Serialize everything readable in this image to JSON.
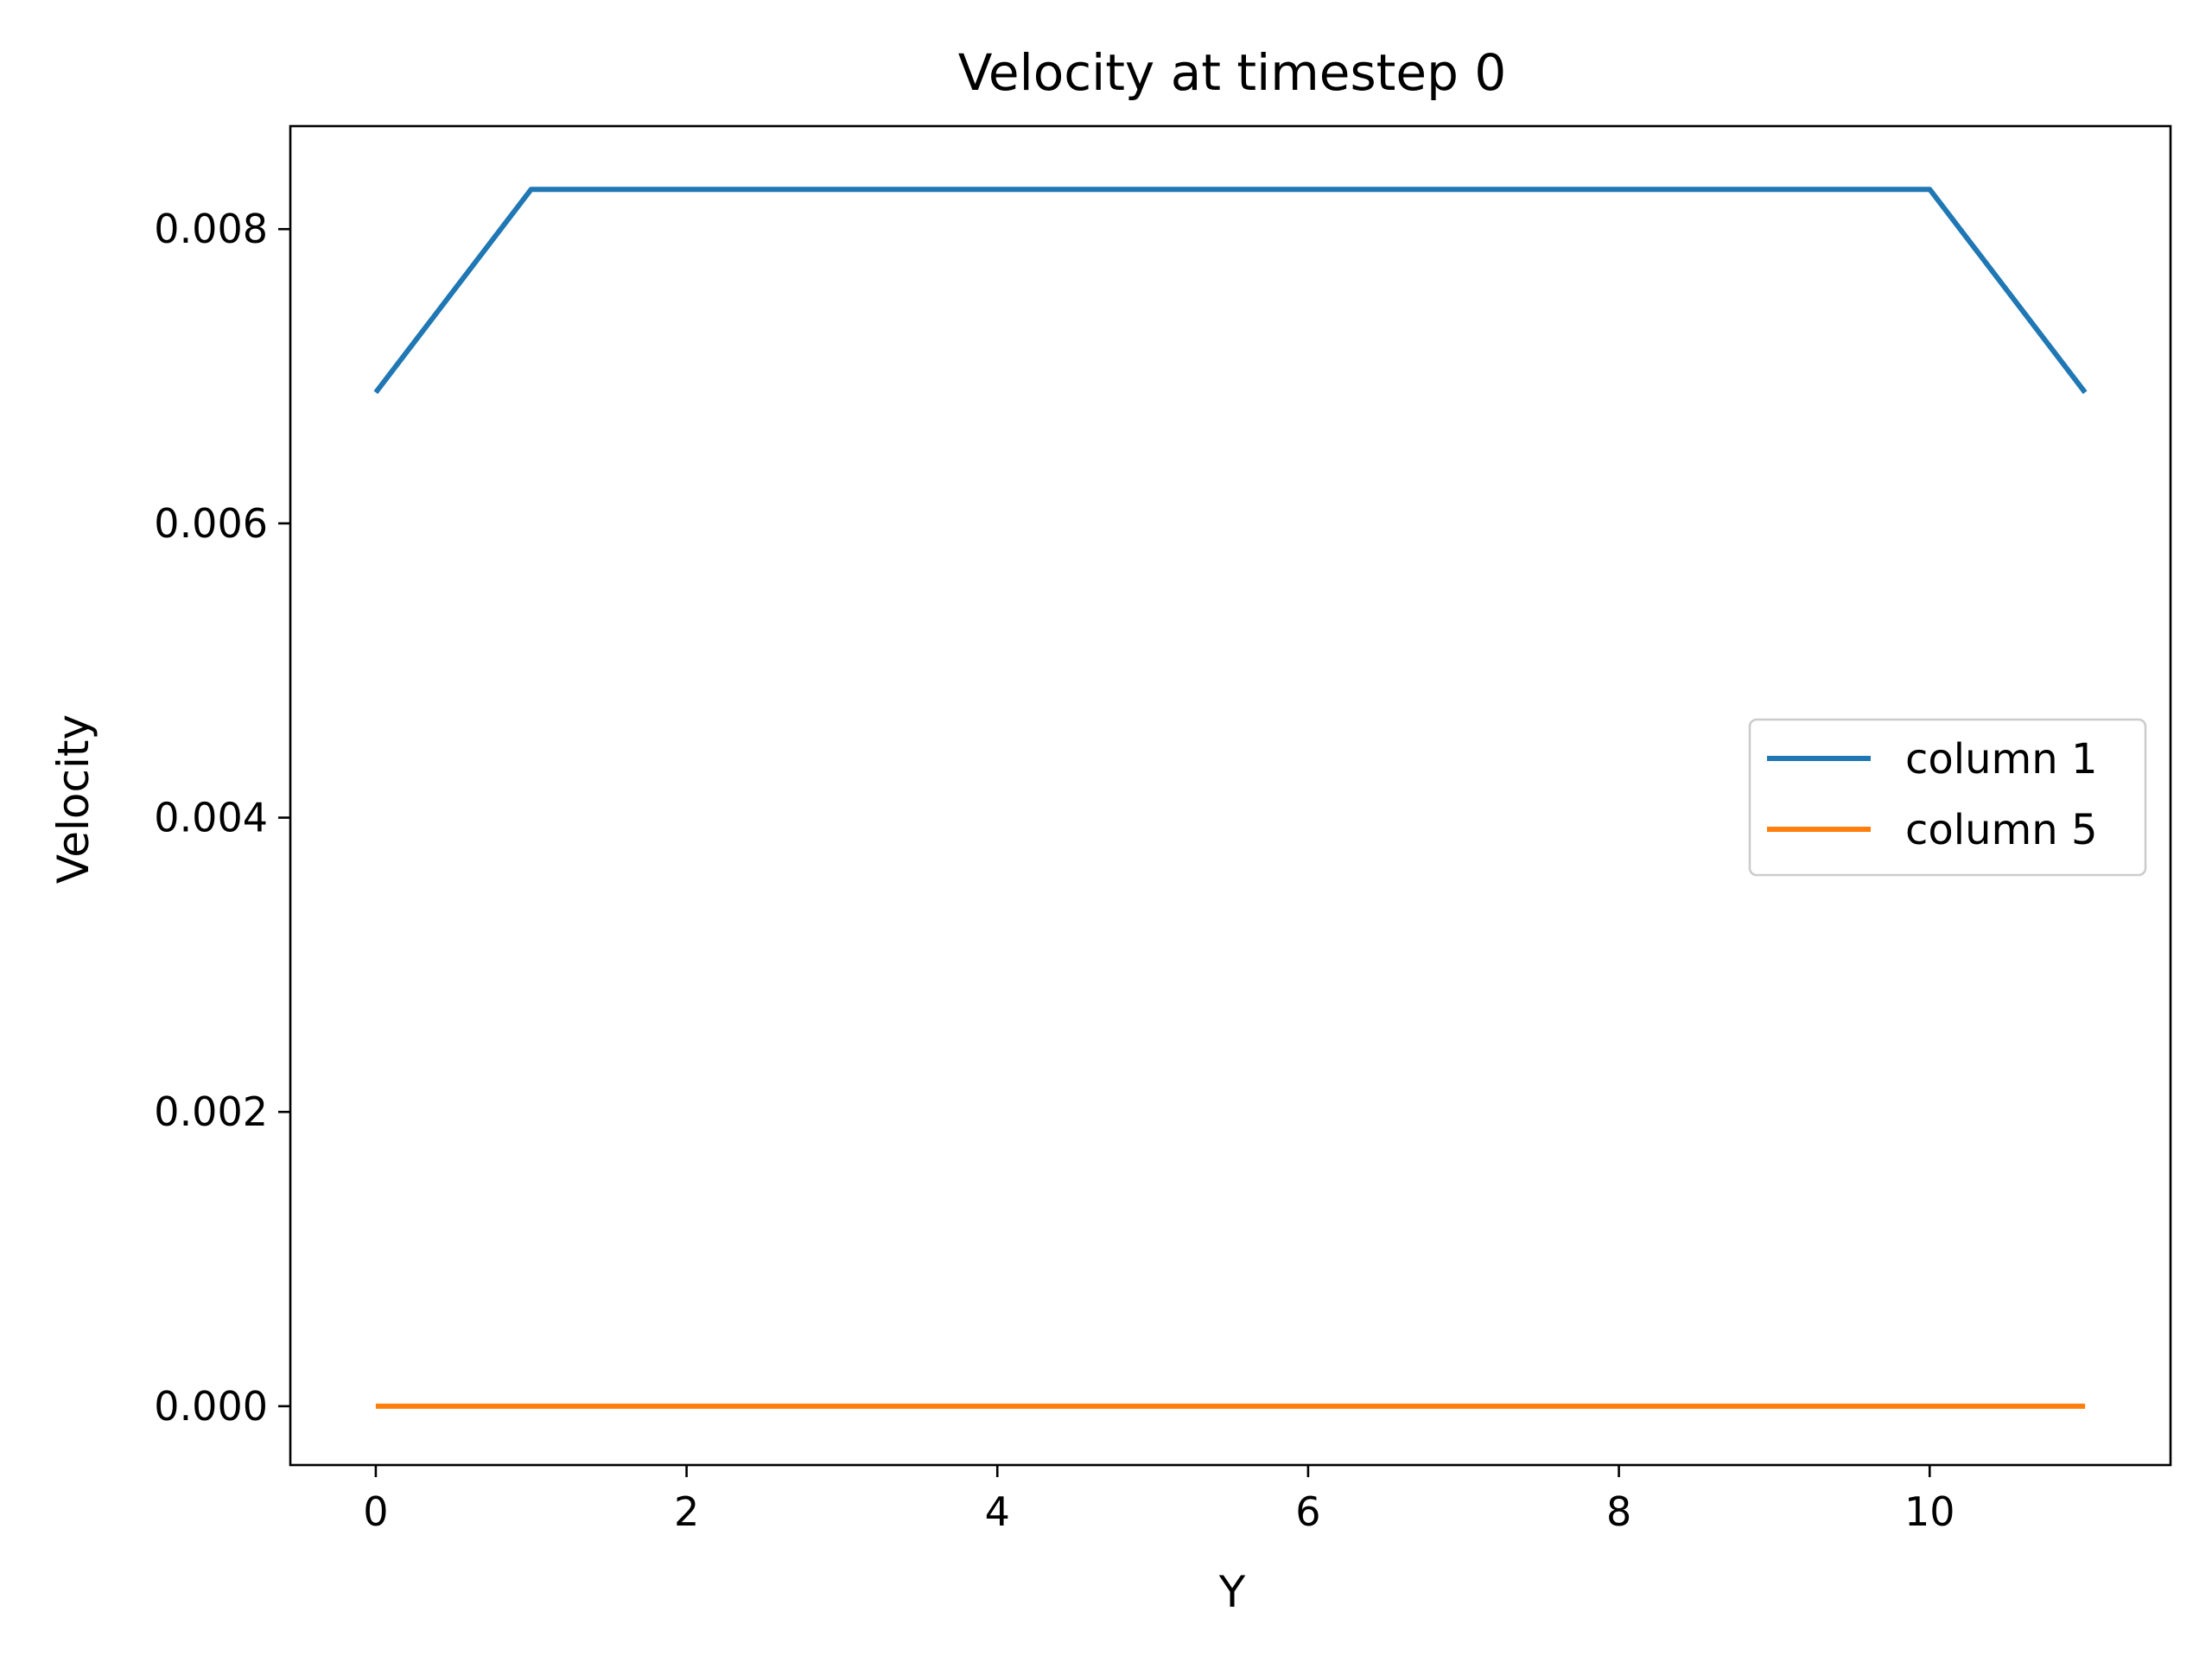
{
  "chart_data": {
    "type": "line",
    "title": "Velocity at timestep 0",
    "xlabel": "Y",
    "ylabel": "Velocity",
    "xlim": [
      -0.55,
      11.55
    ],
    "ylim": [
      -0.0004,
      0.0087
    ],
    "xticks": [
      0,
      2,
      4,
      6,
      8,
      10
    ],
    "yticks": [
      0.0,
      0.002,
      0.004,
      0.006,
      0.008
    ],
    "ytick_labels": [
      "0.000",
      "0.002",
      "0.004",
      "0.006",
      "0.008"
    ],
    "grid": false,
    "legend_position": "center-right",
    "x": [
      0,
      1,
      2,
      3,
      4,
      5,
      6,
      7,
      8,
      9,
      10,
      11
    ],
    "series": [
      {
        "name": "column 1",
        "color": "#1f77b4",
        "values": [
          0.00689,
          0.00827,
          0.00827,
          0.00827,
          0.00827,
          0.00827,
          0.00827,
          0.00827,
          0.00827,
          0.00827,
          0.00827,
          0.00689
        ]
      },
      {
        "name": "column 5",
        "color": "#ff7f0e",
        "values": [
          0,
          0,
          0,
          0,
          0,
          0,
          0,
          0,
          0,
          0,
          0,
          0
        ]
      }
    ]
  }
}
